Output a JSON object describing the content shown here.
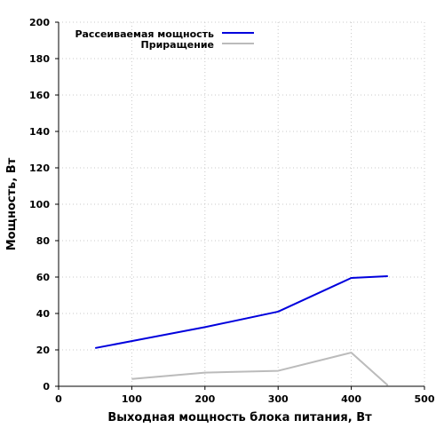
{
  "chart_data": {
    "type": "line",
    "title": "",
    "xlabel": "Выходная мощность блока питания, Вт",
    "ylabel": "Мощность, Вт",
    "xlim": [
      0,
      500
    ],
    "ylim": [
      0,
      200
    ],
    "xticks": [
      0,
      100,
      200,
      300,
      400,
      500
    ],
    "yticks": [
      0,
      20,
      40,
      60,
      80,
      100,
      120,
      140,
      160,
      180,
      200
    ],
    "grid": true,
    "legend_position": "top-left",
    "series": [
      {
        "name": "Рассеиваемая мощность",
        "color": "#0000dd",
        "points": [
          [
            50,
            21
          ],
          [
            200,
            32.5
          ],
          [
            300,
            41
          ],
          [
            400,
            59.5
          ],
          [
            450,
            60.5
          ]
        ]
      },
      {
        "name": "Приращение",
        "color": "#bbbbbb",
        "points": [
          [
            100,
            4
          ],
          [
            200,
            7.5
          ],
          [
            300,
            8.5
          ],
          [
            400,
            18.5
          ],
          [
            450,
            0.5
          ]
        ]
      }
    ]
  }
}
